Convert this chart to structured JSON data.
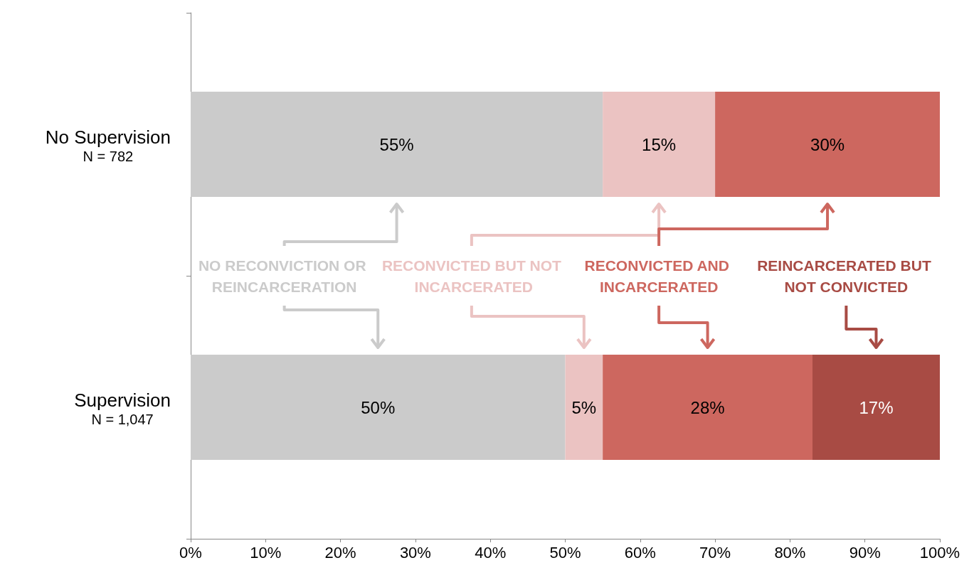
{
  "chart_data": {
    "type": "bar",
    "orientation": "horizontal",
    "stacked": true,
    "legend": false,
    "grid": false,
    "categories": [
      "No Supervision\nN = 782",
      "Supervision\nN = 1,047"
    ],
    "series": [
      {
        "name": "NO RECONVICTION OR REINCARCERATION",
        "color": "#cbcbcb",
        "values": [
          55,
          50
        ],
        "value_labels": [
          "55%",
          "50%"
        ]
      },
      {
        "name": "RECONVICTED BUT NOT INCARCERATED",
        "color": "#ebc3c2",
        "values": [
          15,
          5
        ],
        "value_labels": [
          "15%",
          "5%"
        ]
      },
      {
        "name": "RECONVICTED AND INCARCERATED",
        "color": "#cd675f",
        "values": [
          30,
          28
        ],
        "value_labels": [
          "30%",
          "28%"
        ]
      },
      {
        "name": "REINCARCERATED BUT NOT CONVICTED",
        "color": "#a84b44",
        "values": [
          null,
          17
        ],
        "value_labels": [
          null,
          "17%"
        ]
      }
    ],
    "xlim": [
      0,
      100
    ],
    "xticks": [
      {
        "value": 0,
        "label": "0%"
      },
      {
        "value": 10,
        "label": "10%"
      },
      {
        "value": 20,
        "label": "20%"
      },
      {
        "value": 30,
        "label": "30%"
      },
      {
        "value": 40,
        "label": "40%"
      },
      {
        "value": 50,
        "label": "50%"
      },
      {
        "value": 60,
        "label": "60%"
      },
      {
        "value": 70,
        "label": "70%"
      },
      {
        "value": 80,
        "label": "80%"
      },
      {
        "value": 90,
        "label": "90%"
      },
      {
        "value": 100,
        "label": "100%"
      }
    ]
  }
}
